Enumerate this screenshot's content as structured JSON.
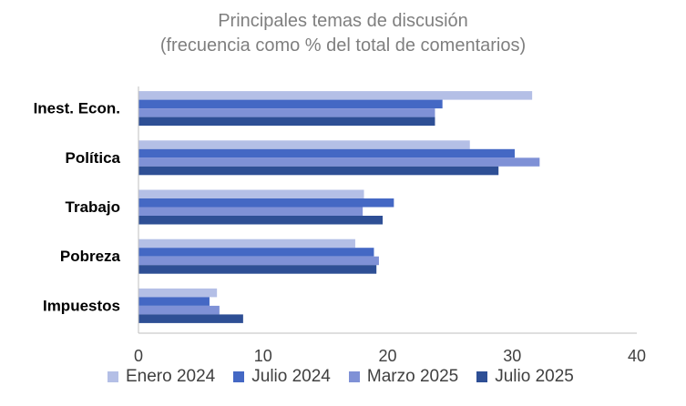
{
  "chart_data": {
    "type": "bar",
    "orientation": "horizontal",
    "title_line1": "Principales temas de discusión",
    "title_line2": "(frecuencia como % del total de comentarios)",
    "categories": [
      "Inest. Econ.",
      "Política",
      "Trabajo",
      "Pobreza",
      "Impuestos"
    ],
    "series": [
      {
        "name": "Enero 2024",
        "color": "#b4bfe6",
        "values": [
          31.6,
          26.6,
          18.1,
          17.4,
          6.3
        ]
      },
      {
        "name": "Julio 2024",
        "color": "#4468c4",
        "values": [
          24.4,
          30.2,
          20.5,
          18.9,
          5.7
        ]
      },
      {
        "name": "Marzo 2025",
        "color": "#7f91d6",
        "values": [
          23.8,
          32.2,
          18.0,
          19.3,
          6.5
        ]
      },
      {
        "name": "Julio 2025",
        "color": "#2e4f95",
        "values": [
          23.8,
          28.9,
          19.6,
          19.1,
          8.4
        ]
      }
    ],
    "xlim": [
      0,
      40
    ],
    "xticks": [
      "0",
      "10",
      "20",
      "30",
      "40"
    ],
    "legend_position": "bottom",
    "grid": false
  }
}
